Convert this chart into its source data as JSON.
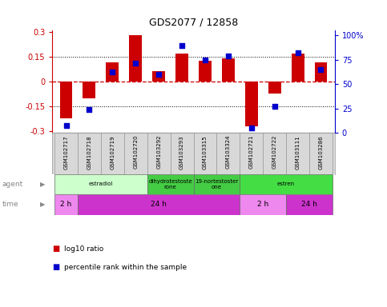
{
  "title": "GDS2077 / 12858",
  "samples": [
    "GSM102717",
    "GSM102718",
    "GSM102719",
    "GSM102720",
    "GSM103292",
    "GSM103293",
    "GSM103315",
    "GSM103324",
    "GSM102721",
    "GSM102722",
    "GSM103111",
    "GSM103286"
  ],
  "log10_ratio": [
    -0.22,
    -0.1,
    0.12,
    0.285,
    0.065,
    0.17,
    0.13,
    0.14,
    -0.27,
    -0.07,
    0.17,
    0.12
  ],
  "percentile_rank": [
    8,
    24,
    63,
    72,
    60,
    90,
    75,
    79,
    5,
    27,
    82,
    65
  ],
  "bar_color": "#cc0000",
  "dot_color": "#0000cc",
  "ylim": [
    -0.31,
    0.31
  ],
  "y2lim": [
    0,
    105
  ],
  "yticks": [
    -0.3,
    -0.15,
    0.0,
    0.15,
    0.3
  ],
  "ytick_labels": [
    "-0.3",
    "-0.15",
    "0",
    "0.15",
    "0.3"
  ],
  "y2ticks": [
    0,
    25,
    50,
    75,
    100
  ],
  "y2tick_labels": [
    "0",
    "25",
    "50",
    "75",
    "100%"
  ],
  "agent_labels": [
    {
      "label": "estradiol",
      "start": 0,
      "end": 4,
      "color": "#ccffcc"
    },
    {
      "label": "dihydrotestoste\nrone",
      "start": 4,
      "end": 6,
      "color": "#44cc44"
    },
    {
      "label": "19-nortestoster\none",
      "start": 6,
      "end": 8,
      "color": "#44cc44"
    },
    {
      "label": "estren",
      "start": 8,
      "end": 12,
      "color": "#44dd44"
    }
  ],
  "time_labels": [
    {
      "label": "2 h",
      "start": 0,
      "end": 1,
      "color": "#ee88ee"
    },
    {
      "label": "24 h",
      "start": 1,
      "end": 8,
      "color": "#cc33cc"
    },
    {
      "label": "2 h",
      "start": 8,
      "end": 10,
      "color": "#ee88ee"
    },
    {
      "label": "24 h",
      "start": 10,
      "end": 12,
      "color": "#cc33cc"
    }
  ],
  "legend_bar_label": "log10 ratio",
  "legend_dot_label": "percentile rank within the sample",
  "sample_box_color": "#d8d8d8",
  "label_arrow_color": "#888888",
  "bg_color": "#ffffff"
}
